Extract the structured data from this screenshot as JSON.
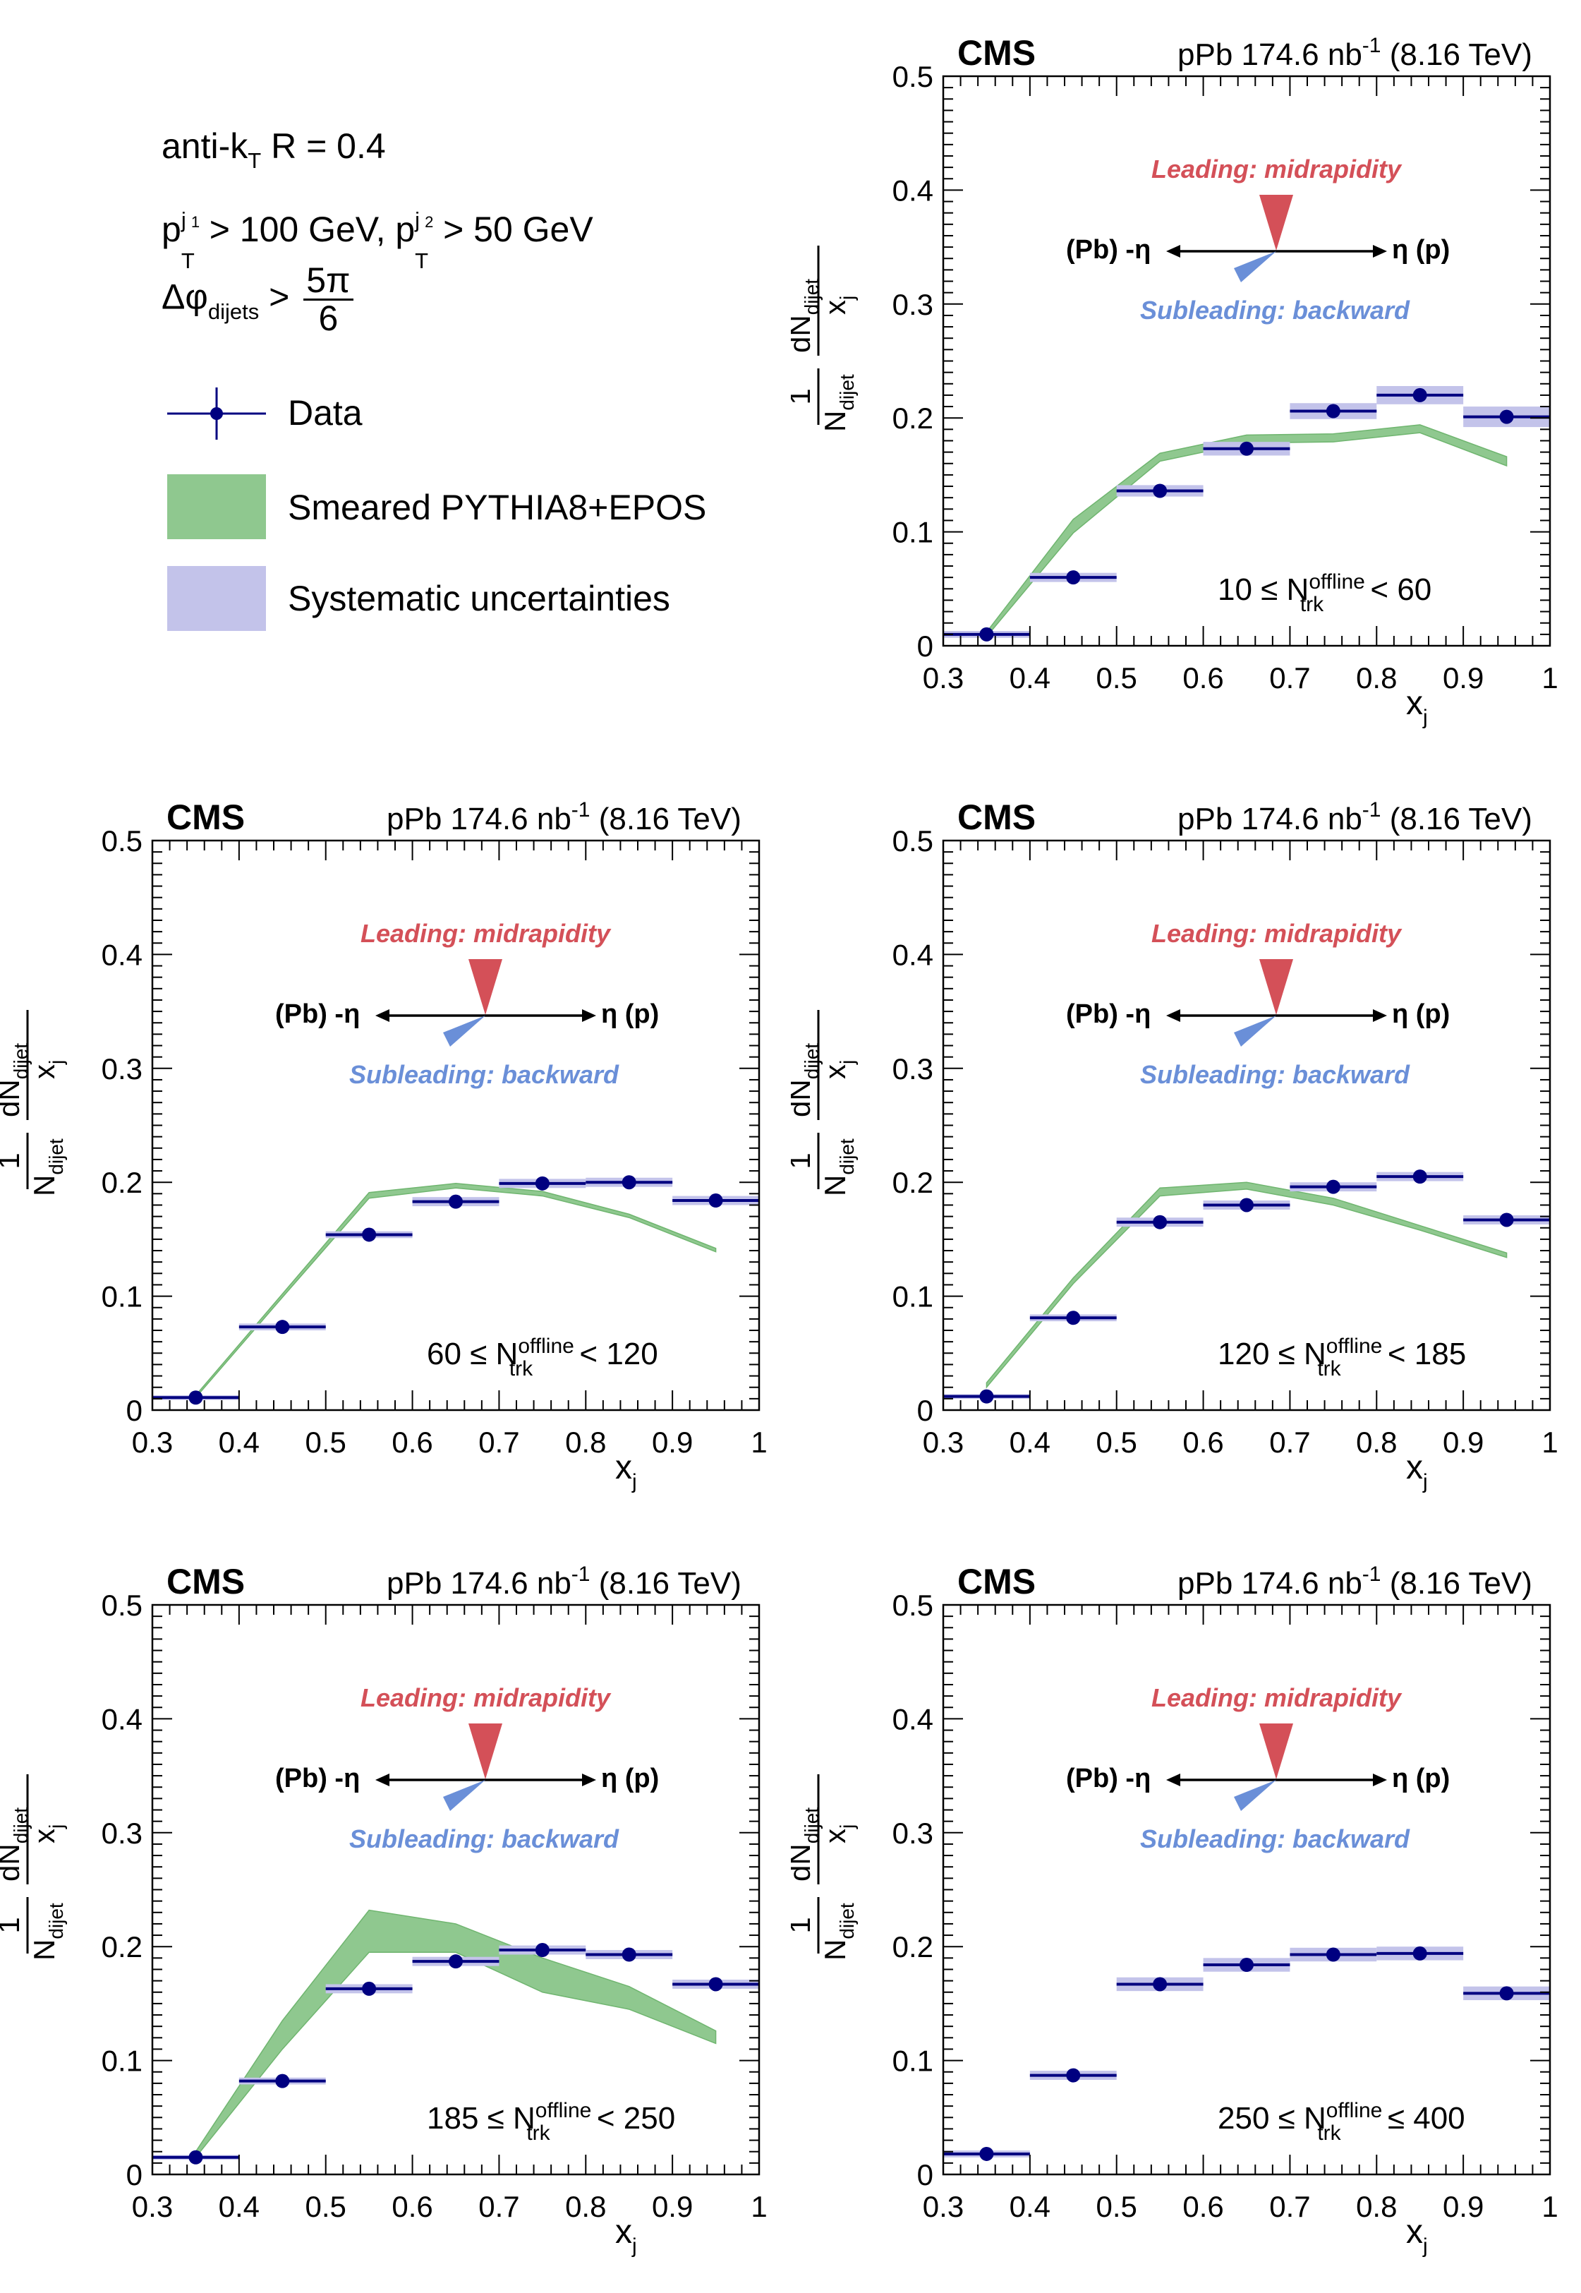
{
  "legend": {
    "algorithm": {
      "prefix": "anti-k",
      "sub": "T",
      "rest": " R = 0.4"
    },
    "cut1": {
      "p": "p",
      "sub": "T",
      "sup": "j",
      "supsub": "1",
      "text": " > 100 GeV, ",
      "p2": "p",
      "sub2": "T",
      "sup2": "j",
      "supsub2": "2",
      "text2": " > 50 GeV"
    },
    "dphi": {
      "prefix": "Δφ",
      "sub": "dijets",
      "op": " > ",
      "num": "5π",
      "den": "6"
    },
    "entries": [
      {
        "label": "Data",
        "color": "#000080"
      },
      {
        "label": "Smeared PYTHIA8+EPOS",
        "color": "#8fc88f"
      },
      {
        "label": "Systematic uncertainties",
        "color": "#c3c3ea"
      }
    ]
  },
  "common": {
    "cms_label": "CMS",
    "lumi_label": "pPb 174.6 nb",
    "lumi_sup": "-1",
    "energy": " (8.16 TeV)",
    "xlabel": "x",
    "xlabel_sub": "j",
    "ylabel": {
      "one": "1",
      "N": "N",
      "N_sub": "dijet",
      "dN": "dN",
      "dN_sub": "dijet",
      "den": "x",
      "den_sub": "j"
    },
    "leading": "Leading: midrapidity",
    "subleading": "Subleading: backward",
    "eta_left": "(Pb) -η",
    "eta_right": "η (p)",
    "ntrk": {
      "N": "N",
      "sup": "offline",
      "sub": "trk"
    },
    "colors": {
      "data": "#000080",
      "syst": "#c3c3ea",
      "mc": "#8fc88f",
      "mc_edge": "#6fb56f",
      "leading": "#d45058",
      "subleading": "#6a8fd8"
    }
  },
  "chart_data": [
    {
      "type": "scatter",
      "x": [
        0.35,
        0.45,
        0.55,
        0.65,
        0.75,
        0.85,
        0.95
      ],
      "y": [
        0.01,
        0.06,
        0.136,
        0.173,
        0.206,
        0.22,
        0.201
      ],
      "syst": [
        0.003,
        0.004,
        0.005,
        0.006,
        0.007,
        0.008,
        0.009
      ],
      "mc": {
        "x": [
          0.35,
          0.45,
          0.55,
          0.65,
          0.75,
          0.85,
          0.95
        ],
        "lo": [
          0.008,
          0.099,
          0.162,
          0.178,
          0.179,
          0.187,
          0.158
        ],
        "hi": [
          0.012,
          0.111,
          0.169,
          0.185,
          0.186,
          0.194,
          0.166
        ]
      },
      "xlim": [
        0.3,
        1.0
      ],
      "ylim": [
        0.0,
        0.5
      ],
      "range": {
        "lo": "10 ≤ ",
        "hi": " < 60"
      }
    },
    {
      "type": "scatter",
      "x": [
        0.35,
        0.45,
        0.55,
        0.65,
        0.75,
        0.85,
        0.95
      ],
      "y": [
        0.011,
        0.073,
        0.154,
        0.183,
        0.199,
        0.2,
        0.184
      ],
      "syst": [
        0.002,
        0.003,
        0.003,
        0.004,
        0.004,
        0.004,
        0.004
      ],
      "mc": {
        "x": [
          0.35,
          0.45,
          0.55,
          0.65,
          0.75,
          0.85,
          0.95
        ],
        "lo": [
          0.011,
          0.099,
          0.186,
          0.195,
          0.188,
          0.169,
          0.139
        ],
        "hi": [
          0.013,
          0.102,
          0.191,
          0.199,
          0.192,
          0.172,
          0.142
        ]
      },
      "xlim": [
        0.3,
        1.0
      ],
      "ylim": [
        0.0,
        0.5
      ],
      "range": {
        "lo": "60 ≤ ",
        "hi": " < 120"
      }
    },
    {
      "type": "scatter",
      "x": [
        0.35,
        0.45,
        0.55,
        0.65,
        0.75,
        0.85,
        0.95
      ],
      "y": [
        0.012,
        0.081,
        0.165,
        0.18,
        0.196,
        0.205,
        0.167
      ],
      "syst": [
        0.002,
        0.003,
        0.004,
        0.004,
        0.004,
        0.004,
        0.004
      ],
      "mc": {
        "x": [
          0.35,
          0.45,
          0.55,
          0.65,
          0.75,
          0.85,
          0.95
        ],
        "lo": [
          0.02,
          0.111,
          0.188,
          0.194,
          0.18,
          0.158,
          0.134
        ],
        "hi": [
          0.024,
          0.116,
          0.195,
          0.2,
          0.186,
          0.162,
          0.138
        ]
      },
      "xlim": [
        0.3,
        1.0
      ],
      "ylim": [
        0.0,
        0.5
      ],
      "range": {
        "lo": "120 ≤ ",
        "hi": " < 185"
      }
    },
    {
      "type": "scatter",
      "x": [
        0.35,
        0.45,
        0.55,
        0.65,
        0.75,
        0.85,
        0.95
      ],
      "y": [
        0.015,
        0.082,
        0.163,
        0.187,
        0.197,
        0.193,
        0.167
      ],
      "syst": [
        0.002,
        0.003,
        0.004,
        0.004,
        0.004,
        0.004,
        0.004
      ],
      "mc": {
        "x": [
          0.35,
          0.45,
          0.55,
          0.65,
          0.75,
          0.85,
          0.95
        ],
        "lo": [
          0.015,
          0.11,
          0.195,
          0.195,
          0.16,
          0.145,
          0.115
        ],
        "hi": [
          0.02,
          0.135,
          0.232,
          0.22,
          0.19,
          0.165,
          0.126
        ]
      },
      "xlim": [
        0.3,
        1.0
      ],
      "ylim": [
        0.0,
        0.5
      ],
      "range": {
        "lo": "185 ≤ ",
        "hi": " < 250"
      }
    },
    {
      "type": "scatter",
      "x": [
        0.35,
        0.45,
        0.55,
        0.65,
        0.75,
        0.85,
        0.95
      ],
      "y": [
        0.018,
        0.087,
        0.167,
        0.184,
        0.193,
        0.194,
        0.159
      ],
      "syst": [
        0.003,
        0.004,
        0.006,
        0.006,
        0.006,
        0.006,
        0.006
      ],
      "mc": null,
      "xlim": [
        0.3,
        1.0
      ],
      "ylim": [
        0.0,
        0.5
      ],
      "range": {
        "lo": "250 ≤ ",
        "hi": " ≤ 400"
      }
    }
  ]
}
